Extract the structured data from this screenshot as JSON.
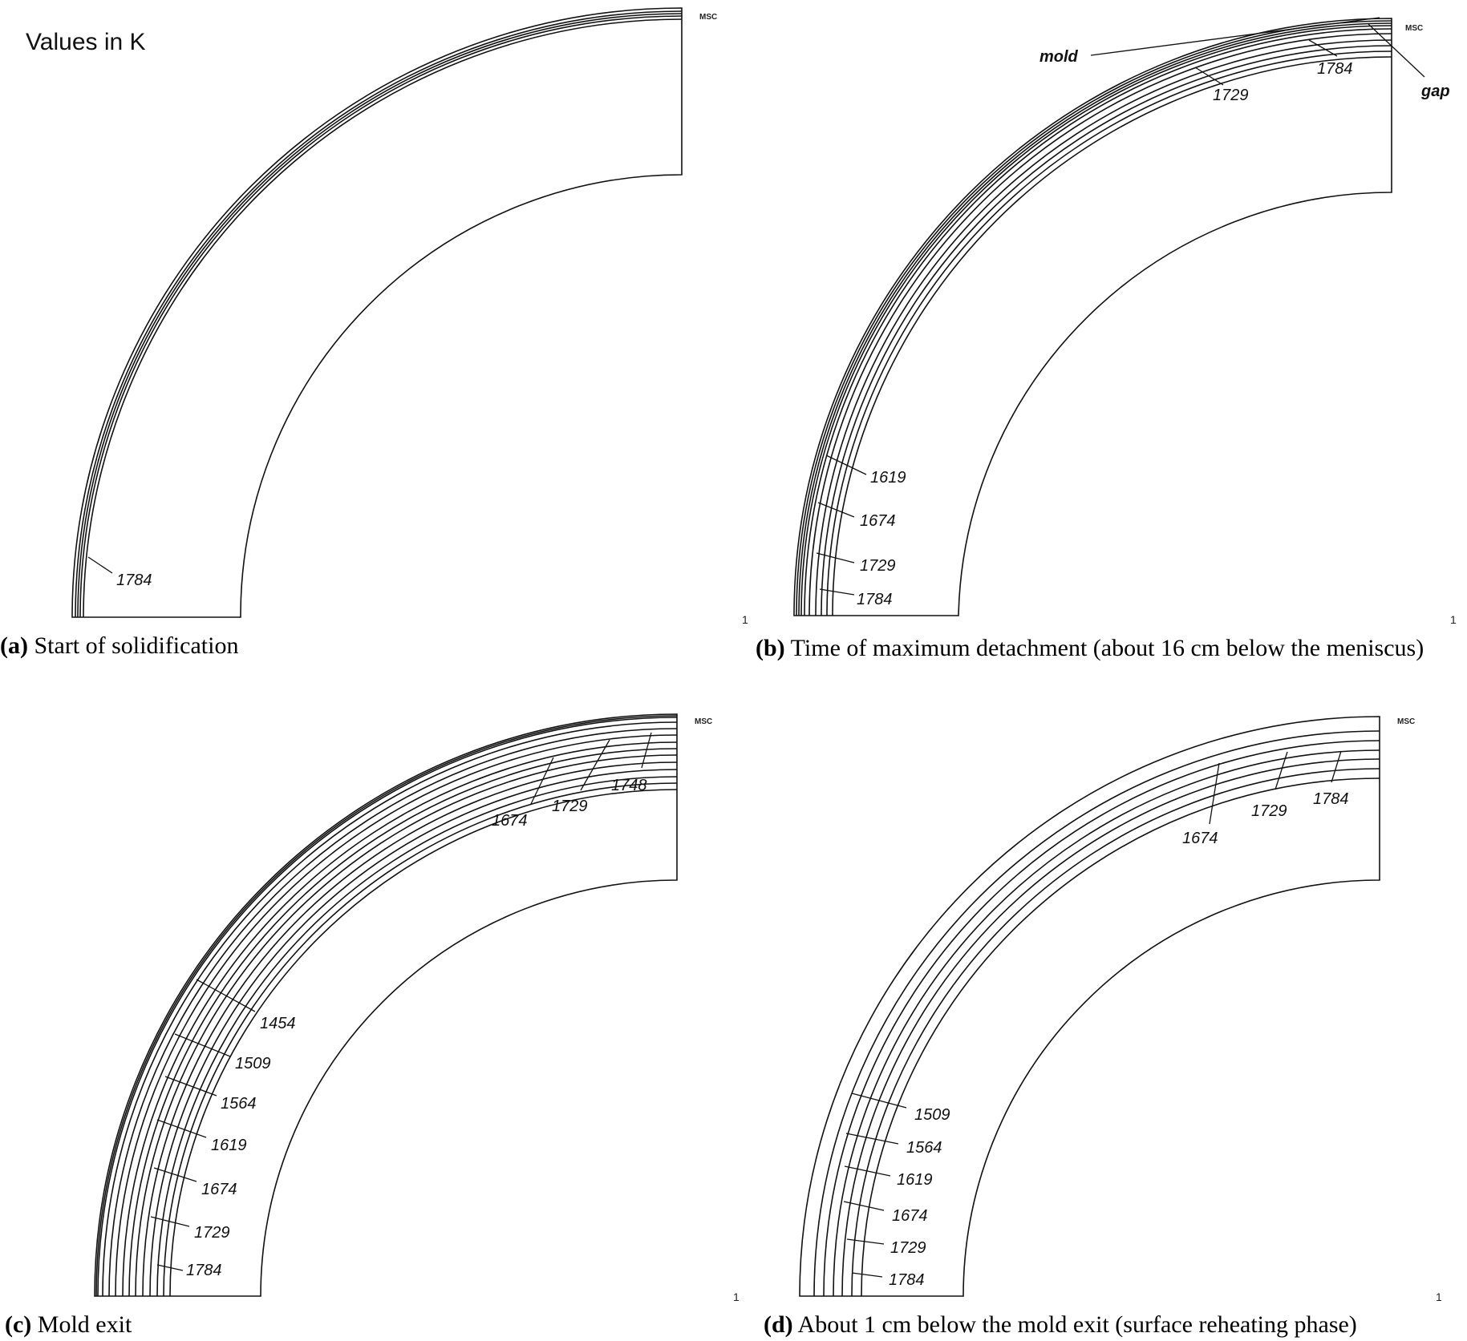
{
  "note": "Values in K",
  "logo": "MSC",
  "corner_marker": "1",
  "panels": [
    {
      "id": "a",
      "letter": "(a)",
      "caption": "Start of solidification",
      "labels": [
        "1784"
      ],
      "callouts": []
    },
    {
      "id": "b",
      "letter": "(b)",
      "caption": "Time of maximum detachment (about 16 cm below the meniscus)",
      "labels": [
        "1619",
        "1674",
        "1729",
        "1784",
        "1729",
        "1784"
      ],
      "callouts": [
        "mold",
        "gap"
      ]
    },
    {
      "id": "c",
      "letter": "(c)",
      "caption": "Mold exit",
      "labels": [
        "1454",
        "1509",
        "1564",
        "1619",
        "1674",
        "1729",
        "1784",
        "1674",
        "1729",
        "1748"
      ],
      "callouts": []
    },
    {
      "id": "d",
      "letter": "(d)",
      "caption": "About 1 cm below the mold exit (surface reheating phase)",
      "labels": [
        "1509",
        "1564",
        "1619",
        "1674",
        "1729",
        "1784",
        "1674",
        "1729",
        "1784"
      ],
      "callouts": []
    }
  ]
}
